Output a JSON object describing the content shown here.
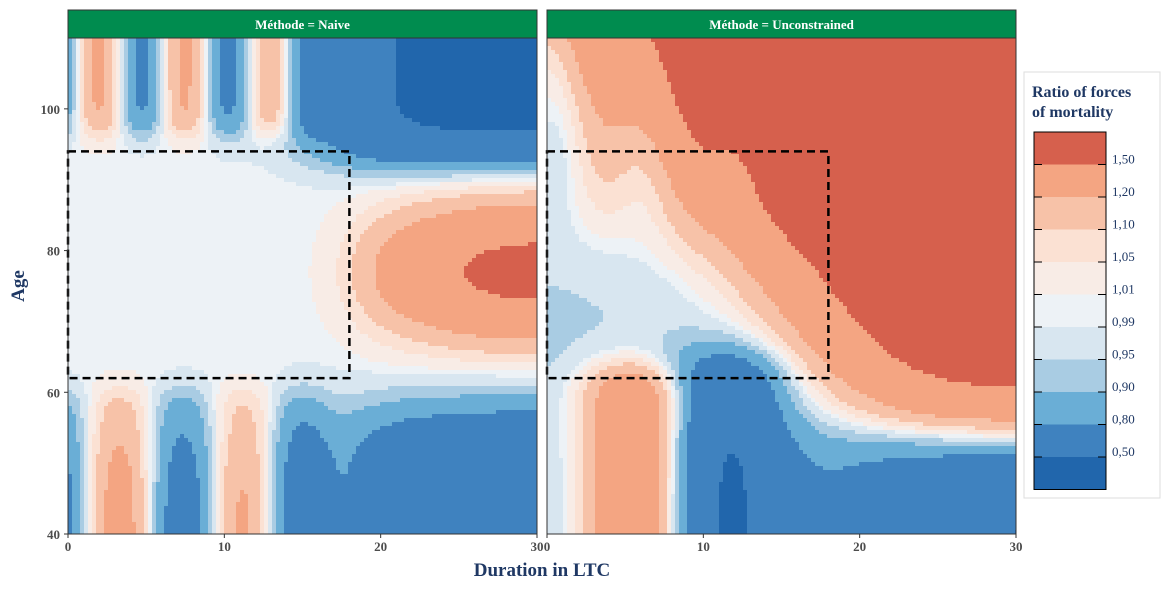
{
  "chart_data": {
    "type": "heatmap",
    "subtype": "filled-contour",
    "xlabel": "Duration in LTC",
    "ylabel": "Age",
    "xlim": [
      0,
      30
    ],
    "ylim": [
      40,
      110
    ],
    "x_ticks": [
      0,
      10,
      20,
      30
    ],
    "y_ticks": [
      40,
      60,
      80,
      100
    ],
    "grid": false,
    "facets": [
      {
        "label": "Méthode = Naive"
      },
      {
        "label": "Méthode = Unconstrained"
      }
    ],
    "highlight_region": {
      "style": "dashed",
      "x": [
        0,
        18
      ],
      "y": [
        62,
        94
      ]
    },
    "legend": {
      "title": "Ratio of forces of mortality",
      "position": "right",
      "breaks": [
        "1,50",
        "1,20",
        "1,10",
        "1,05",
        "1,01",
        "0,99",
        "0,95",
        "0,90",
        "0,80",
        "0,50"
      ],
      "colors": [
        "#d6604d",
        "#f4a582",
        "#f7c2a8",
        "#fbe1d3",
        "#f8ece6",
        "#edf2f6",
        "#d8e6f0",
        "#a9cce3",
        "#6aaed6",
        "#3f82bf",
        "#2166ac"
      ]
    },
    "strip_color": "#008c4f"
  }
}
